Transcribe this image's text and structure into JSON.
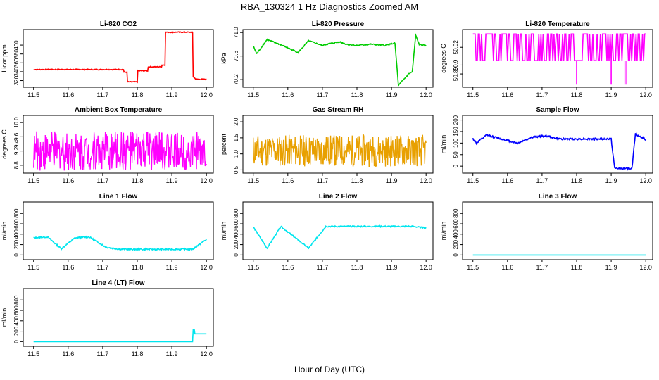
{
  "title": "RBA_130324  1 Hz Diagnostics Zoomed AM",
  "xlabel": "Hour of Day (UTC)",
  "chart_data": [
    {
      "type": "line",
      "title": "Li-820 CO2",
      "ylabel": "Licor ppm",
      "color": "#ff0000",
      "xlim": [
        11.47,
        12.02
      ],
      "ylim": [
        305,
        435
      ],
      "xticks": [
        "11.5",
        "11.6",
        "11.7",
        "11.8",
        "11.9",
        "12.0"
      ],
      "yticks": [
        "320",
        "340",
        "360",
        "380",
        "400"
      ],
      "x": [
        11.5,
        11.76,
        11.76,
        11.77,
        11.77,
        11.8,
        11.8,
        11.83,
        11.83,
        11.87,
        11.87,
        11.88,
        11.88,
        11.96,
        11.96,
        11.97,
        11.97,
        12.0
      ],
      "y": [
        345,
        345,
        339,
        339,
        317,
        317,
        342,
        342,
        351,
        351,
        355,
        355,
        429,
        429,
        330,
        323,
        323,
        323
      ],
      "noise": 1
    },
    {
      "type": "line",
      "title": "Li-820 Pressure",
      "ylabel": "kPa",
      "color": "#00cc00",
      "xlim": [
        11.47,
        12.02
      ],
      "ylim": [
        70.07,
        71.05
      ],
      "xticks": [
        "11.5",
        "11.6",
        "11.7",
        "11.8",
        "11.9",
        "12.0"
      ],
      "yticks": [
        "70.2",
        "70.6",
        "71.0"
      ],
      "x": [
        11.5,
        11.5,
        11.51,
        11.51,
        11.54,
        11.54,
        11.58,
        11.58,
        11.63,
        11.63,
        11.66,
        11.66,
        11.7,
        11.7,
        11.72,
        11.72,
        11.75,
        11.75,
        11.77,
        11.77,
        11.8,
        11.8,
        11.84,
        11.84,
        11.88,
        11.88,
        11.91,
        11.91,
        11.92,
        11.92,
        11.95,
        11.95,
        11.96,
        11.96,
        11.97,
        11.97,
        11.98,
        11.98,
        12.0
      ],
      "y": [
        70.77,
        70.77,
        70.64,
        70.64,
        70.88,
        70.88,
        70.79,
        70.79,
        70.66,
        70.66,
        70.86,
        70.86,
        70.78,
        70.78,
        70.81,
        70.81,
        70.84,
        70.84,
        70.8,
        70.8,
        70.78,
        70.78,
        70.8,
        70.8,
        70.78,
        70.78,
        70.82,
        70.82,
        70.1,
        70.1,
        70.3,
        70.3,
        70.33,
        70.33,
        70.95,
        70.95,
        70.8,
        70.8,
        70.77
      ],
      "noise": 0.01
    },
    {
      "type": "line",
      "title": "Li-820 Temperature",
      "ylabel": "degrees C",
      "color": "#ff00ff",
      "xlim": [
        11.47,
        12.02
      ],
      "ylim": [
        50.875,
        50.94
      ],
      "xticks": [
        "11.5",
        "11.6",
        "11.7",
        "11.8",
        "11.9",
        "12.0"
      ],
      "yticks": [
        "50.89",
        "50.9",
        "50.92"
      ],
      "x": [
        11.5,
        11.52,
        11.52,
        11.8,
        11.8,
        11.8,
        11.8,
        11.9,
        11.9,
        11.9,
        11.9,
        11.94,
        11.94,
        11.95,
        11.95,
        12.0
      ],
      "y": [
        50.935,
        50.905,
        50.905,
        50.935,
        50.905,
        50.878,
        50.905,
        50.935,
        50.905,
        50.878,
        50.905,
        50.905,
        50.878,
        50.878,
        50.905,
        50.935
      ],
      "toggle": true
    },
    {
      "type": "line",
      "title": "Ambient Box Temperature",
      "ylabel": "degrees C",
      "color": "#ff00ff",
      "xlim": [
        11.47,
        12.02
      ],
      "ylim": [
        8.58,
        10.2
      ],
      "xticks": [
        "11.5",
        "11.6",
        "11.7",
        "11.8",
        "11.9",
        "12.0"
      ],
      "yticks": [
        "8.8",
        "9.2",
        "9.4",
        "9.6",
        "10.0"
      ],
      "x": [
        11.5,
        12.0
      ],
      "y": [
        9.2,
        9.2
      ],
      "noise": 0.55
    },
    {
      "type": "line",
      "title": "Gas Stream RH",
      "ylabel": "percent",
      "color": "#e8a000",
      "xlim": [
        11.47,
        12.02
      ],
      "ylim": [
        0.4,
        2.2
      ],
      "xticks": [
        "11.5",
        "11.6",
        "11.7",
        "11.8",
        "11.9",
        "12.0"
      ],
      "yticks": [
        "0.5",
        "1.0",
        "1.5",
        "2.0"
      ],
      "x": [
        11.5,
        12.0
      ],
      "y": [
        1.1,
        1.1
      ],
      "noise": 0.5
    },
    {
      "type": "line",
      "title": "Sample Flow",
      "ylabel": "ml/min",
      "color": "#0000ff",
      "xlim": [
        11.47,
        12.02
      ],
      "ylim": [
        -30,
        220
      ],
      "xticks": [
        "11.5",
        "11.6",
        "11.7",
        "11.8",
        "11.9",
        "12.0"
      ],
      "yticks": [
        "0",
        "50",
        "100",
        "150",
        "200"
      ],
      "x": [
        11.5,
        11.5,
        11.51,
        11.51,
        11.54,
        11.54,
        11.59,
        11.59,
        11.63,
        11.63,
        11.67,
        11.67,
        11.71,
        11.71,
        11.75,
        11.75,
        11.9,
        11.9,
        11.91,
        11.91,
        11.96,
        11.96,
        11.97,
        11.97,
        12.0
      ],
      "y": [
        120,
        120,
        100,
        100,
        135,
        135,
        115,
        115,
        100,
        100,
        125,
        125,
        132,
        132,
        118,
        118,
        118,
        118,
        -10,
        -10,
        -10,
        -10,
        140,
        140,
        115
      ],
      "noise": 4
    },
    {
      "type": "line",
      "title": "Line 1 Flow",
      "ylabel": "ml/min",
      "color": "#00e5ee",
      "xlim": [
        11.47,
        12.02
      ],
      "ylim": [
        -90,
        1020
      ],
      "xticks": [
        "11.5",
        "11.6",
        "11.7",
        "11.8",
        "11.9",
        "12.0"
      ],
      "yticks": [
        "0",
        "200",
        "400",
        "600",
        "800"
      ],
      "x": [
        11.5,
        11.5,
        11.54,
        11.54,
        11.58,
        11.58,
        11.62,
        11.62,
        11.66,
        11.66,
        11.71,
        11.71,
        11.75,
        11.75,
        11.96,
        11.96,
        12.0
      ],
      "y": [
        330,
        330,
        350,
        350,
        120,
        120,
        330,
        330,
        350,
        350,
        150,
        150,
        110,
        110,
        110,
        110,
        300
      ],
      "noise": 15
    },
    {
      "type": "line",
      "title": "Line 2 Flow",
      "ylabel": "ml/min",
      "color": "#00e5ee",
      "xlim": [
        11.47,
        12.02
      ],
      "ylim": [
        -90,
        1020
      ],
      "xticks": [
        "11.5",
        "11.6",
        "11.7",
        "11.8",
        "11.9",
        "12.0"
      ],
      "yticks": [
        "0",
        "200",
        "400",
        "600",
        "800"
      ],
      "x": [
        11.5,
        11.5,
        11.54,
        11.54,
        11.58,
        11.58,
        11.66,
        11.66,
        11.71,
        11.71,
        11.96,
        11.96,
        12.0
      ],
      "y": [
        540,
        540,
        130,
        130,
        550,
        550,
        130,
        130,
        550,
        550,
        550,
        550,
        520
      ],
      "noise": 12
    },
    {
      "type": "line",
      "title": "Line 3 Flow",
      "ylabel": "ml/min",
      "color": "#00e5ee",
      "xlim": [
        11.47,
        12.02
      ],
      "ylim": [
        -90,
        1020
      ],
      "xticks": [
        "11.5",
        "11.6",
        "11.7",
        "11.8",
        "11.9",
        "12.0"
      ],
      "yticks": [
        "0",
        "200",
        "400",
        "600",
        "800"
      ],
      "x": [
        11.5,
        12.0
      ],
      "y": [
        0,
        0
      ],
      "noise": 0
    },
    {
      "type": "line",
      "title": "Line 4 (LT) Flow",
      "ylabel": "ml/min",
      "color": "#00e5ee",
      "xlim": [
        11.47,
        12.02
      ],
      "ylim": [
        -90,
        1020
      ],
      "xticks": [
        "11.5",
        "11.6",
        "11.7",
        "11.8",
        "11.9",
        "12.0"
      ],
      "yticks": [
        "0",
        "200",
        "400",
        "600",
        "800"
      ],
      "x": [
        11.5,
        11.96,
        11.96,
        11.965,
        11.965,
        12.0
      ],
      "y": [
        0,
        0,
        230,
        230,
        150,
        150
      ],
      "noise": 0
    }
  ]
}
